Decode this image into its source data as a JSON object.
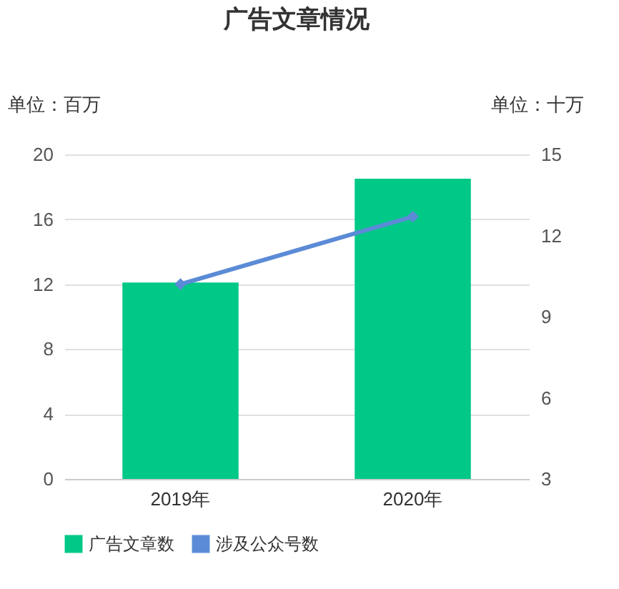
{
  "chart_data": {
    "type": "bar",
    "title": "广告文章情况",
    "ylabel": "单位：百万",
    "y2label": "单位：十万",
    "categories": [
      "2019年",
      "2020年"
    ],
    "series": [
      {
        "name": "广告文章数",
        "color": "#00c887",
        "values": [
          12.1,
          18.5
        ]
      },
      {
        "name": "涉及公众号数",
        "type": "line",
        "axis": "y2",
        "color": "#5b8bd6",
        "marker": "diamond",
        "values": [
          10.2,
          12.7
        ]
      }
    ],
    "ylim": [
      0,
      20
    ],
    "yticks": [
      0,
      4,
      8,
      12,
      16,
      20
    ],
    "y2lim": [
      3,
      15
    ],
    "y2ticks": [
      3,
      6,
      9,
      12,
      15
    ],
    "grid": "y",
    "legend": "bottom"
  }
}
